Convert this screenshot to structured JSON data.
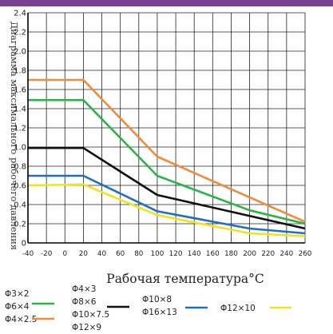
{
  "chart_data": {
    "type": "line",
    "ylabel": "Диаграмма максимального рабочего давления",
    "xlabel": "Рабочая температура°C",
    "xticks": [
      -40,
      -20,
      0,
      20,
      40,
      60,
      80,
      100,
      120,
      140,
      160,
      180,
      200,
      220,
      240,
      260
    ],
    "yticks": [
      "0",
      "0.2",
      "0.4",
      "0.6",
      "0.8",
      "1.0",
      "1.2",
      "1.4",
      "1.6",
      "1.8",
      "2.0",
      "2.2",
      "2.4"
    ],
    "xlim": [
      -40,
      260
    ],
    "ylim": [
      0,
      2.4
    ],
    "grid": true,
    "legend_position": "bottom",
    "series": [
      {
        "name_lines": [
          "Φ3×2",
          "Φ6×4",
          "Φ4×2.5"
        ],
        "color": "#f08a3c",
        "points": [
          [
            -40,
            1.7
          ],
          [
            20,
            1.7
          ],
          [
            100,
            0.9
          ],
          [
            260,
            0.22
          ]
        ]
      },
      {
        "name_lines": [
          "Φ4×3",
          "Φ8×6",
          "Φ10×7.5",
          "Φ12×9"
        ],
        "color": "#2bb34a",
        "points": [
          [
            -40,
            1.49
          ],
          [
            20,
            1.49
          ],
          [
            100,
            0.7
          ],
          [
            200,
            0.34
          ],
          [
            260,
            0.2
          ]
        ]
      },
      {
        "name_lines": [
          "Φ10×8",
          "Φ16×13"
        ],
        "color": "#111111",
        "points": [
          [
            -40,
            0.99
          ],
          [
            20,
            0.99
          ],
          [
            100,
            0.5
          ],
          [
            260,
            0.15
          ]
        ]
      },
      {
        "name_lines": [
          "Φ12×10"
        ],
        "color": "#1f6fc1",
        "points": [
          [
            -40,
            0.7
          ],
          [
            20,
            0.7
          ],
          [
            100,
            0.33
          ],
          [
            200,
            0.15
          ],
          [
            260,
            0.1
          ]
        ]
      },
      {
        "name_lines": [],
        "color": "#f2e21b",
        "points": [
          [
            -40,
            0.6
          ],
          [
            20,
            0.61
          ],
          [
            100,
            0.29
          ],
          [
            200,
            0.1
          ],
          [
            260,
            0.07
          ]
        ]
      }
    ]
  }
}
